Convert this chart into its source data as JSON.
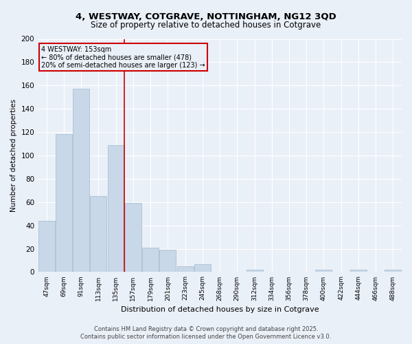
{
  "title_line1": "4, WESTWAY, COTGRAVE, NOTTINGHAM, NG12 3QD",
  "title_line2": "Size of property relative to detached houses in Cotgrave",
  "xlabel": "Distribution of detached houses by size in Cotgrave",
  "ylabel": "Number of detached properties",
  "bar_color": "#c8d8e8",
  "bar_edge_color": "#a0b8cc",
  "background_color": "#eaf0f8",
  "grid_color": "#ffffff",
  "annotation_box_color": "#cc0000",
  "vline_color": "#cc0000",
  "annotation_title": "4 WESTWAY: 153sqm",
  "annotation_line1": "← 80% of detached houses are smaller (478)",
  "annotation_line2": "20% of semi-detached houses are larger (123) →",
  "categories": [
    "47sqm",
    "69sqm",
    "91sqm",
    "113sqm",
    "135sqm",
    "157sqm",
    "179sqm",
    "201sqm",
    "223sqm",
    "245sqm",
    "268sqm",
    "290sqm",
    "312sqm",
    "334sqm",
    "356sqm",
    "378sqm",
    "400sqm",
    "422sqm",
    "444sqm",
    "466sqm",
    "488sqm"
  ],
  "values": [
    44,
    118,
    157,
    65,
    109,
    59,
    21,
    19,
    5,
    7,
    0,
    0,
    2,
    0,
    0,
    0,
    2,
    0,
    2,
    0,
    2
  ],
  "ylim": [
    0,
    200
  ],
  "yticks": [
    0,
    20,
    40,
    60,
    80,
    100,
    120,
    140,
    160,
    180,
    200
  ],
  "vline_index": 5,
  "footer_line1": "Contains HM Land Registry data © Crown copyright and database right 2025.",
  "footer_line2": "Contains public sector information licensed under the Open Government Licence v3.0."
}
